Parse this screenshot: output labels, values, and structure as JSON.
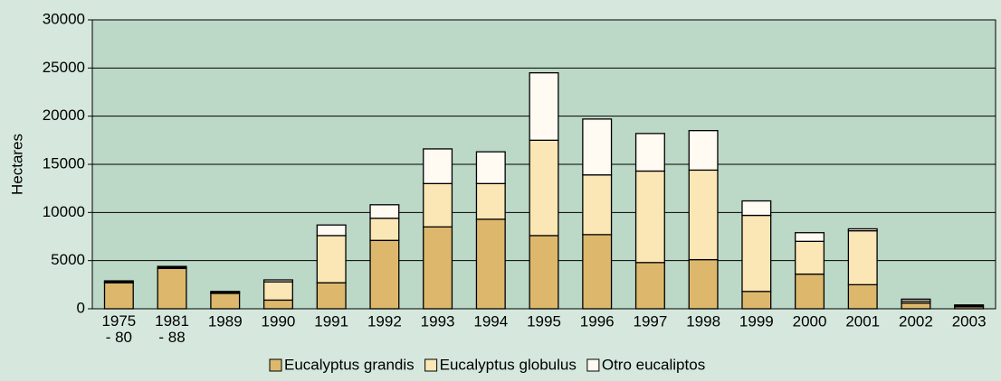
{
  "chart_data": {
    "type": "bar",
    "stacked": true,
    "y_label": "Hectares",
    "categories": [
      "1975 - 80",
      "1981 - 88",
      "1989",
      "1990",
      "1991",
      "1992",
      "1993",
      "1994",
      "1995",
      "1996",
      "1997",
      "1998",
      "1999",
      "2000",
      "2001",
      "2002",
      "2003"
    ],
    "series": [
      {
        "name": "Eucalyptus grandis",
        "color": "#ddb86c",
        "values": [
          2700,
          4200,
          1600,
          900,
          2700,
          7100,
          8500,
          9300,
          7600,
          7700,
          4800,
          5100,
          1800,
          3600,
          2500,
          600,
          200
        ]
      },
      {
        "name": "Eucalyptus globulus",
        "color": "#fbe6b5",
        "values": [
          100,
          100,
          100,
          1900,
          4900,
          2300,
          4500,
          3700,
          9900,
          6200,
          9500,
          9300,
          7900,
          3400,
          5600,
          200,
          100
        ]
      },
      {
        "name": "Otro eucaliptos",
        "color": "#fffaf2",
        "values": [
          100,
          100,
          100,
          200,
          1100,
          1400,
          3600,
          3300,
          7000,
          5800,
          3900,
          4100,
          1500,
          900,
          200,
          200,
          100
        ]
      }
    ],
    "ylim": [
      0,
      30000
    ],
    "yticks": [
      0,
      5000,
      10000,
      15000,
      20000,
      25000,
      30000
    ],
    "grid": true
  }
}
